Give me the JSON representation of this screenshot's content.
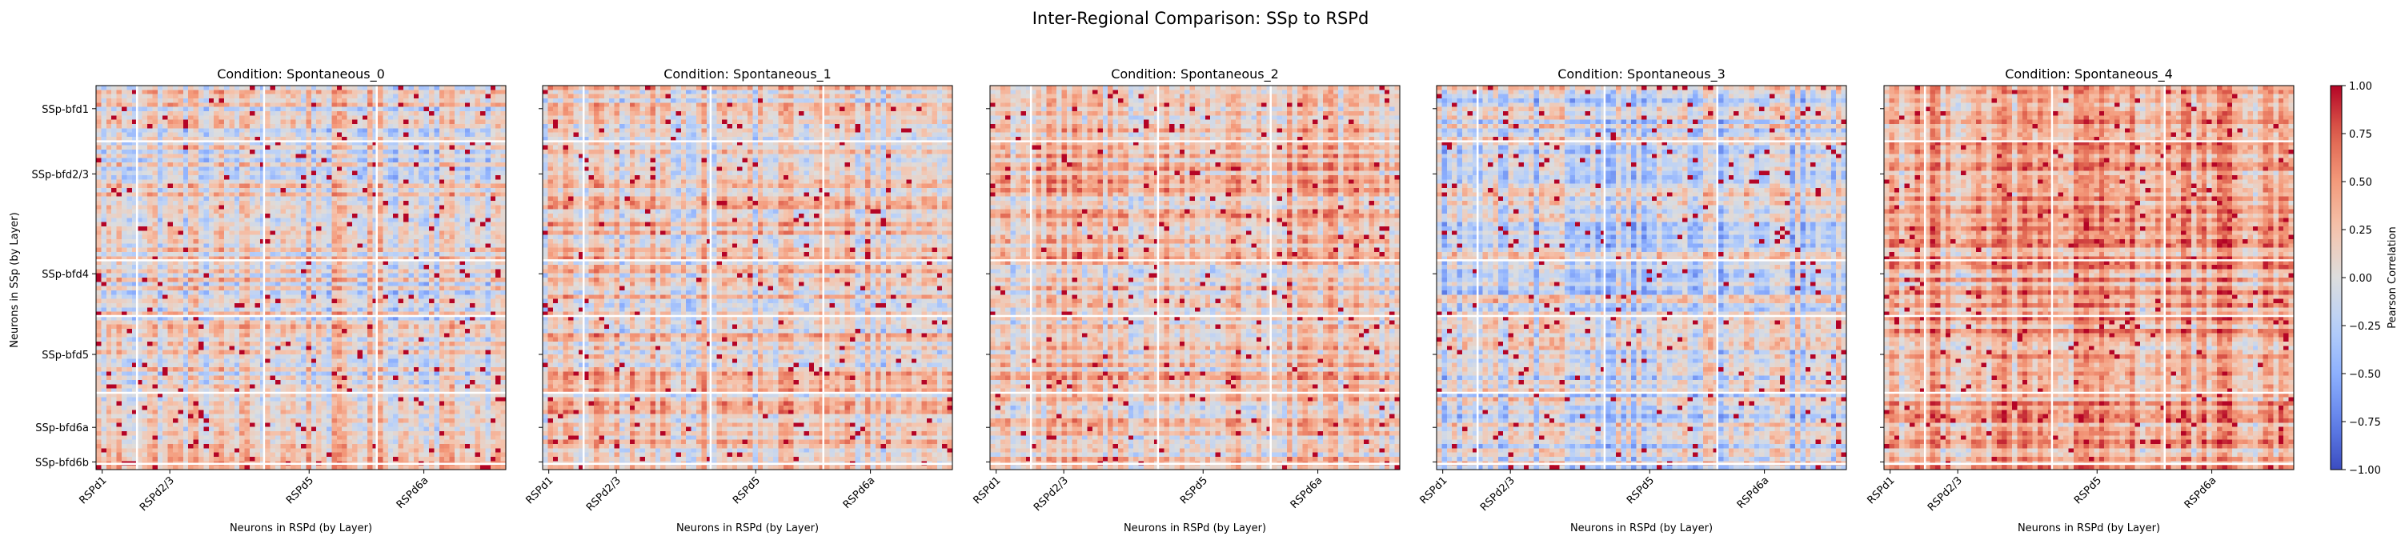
{
  "figure": {
    "title": "Inter-Regional Comparison: SSp to RSPd",
    "shared_ylabel": "Neurons in SSp (by Layer)"
  },
  "chart_data": [
    {
      "type": "heatmap",
      "title": "Condition: Spontaneous_0",
      "xlabel": "Neurons in RSPd (by Layer)",
      "ylabel": "Neurons in SSp (by Layer)",
      "x_tick_labels": [
        "RSPd1",
        "RSPd2/3",
        "RSPd5",
        "RSPd6a"
      ],
      "y_tick_labels": [
        "SSp-bfd1",
        "SSp-bfd2/3",
        "SSp-bfd4",
        "SSp-bfd5",
        "SSp-bfd6a",
        "SSp-bfd6b"
      ],
      "value_range": [
        -1.0,
        1.0
      ],
      "summary": {
        "mean_correlation": 0.05
      }
    },
    {
      "type": "heatmap",
      "title": "Condition: Spontaneous_1",
      "xlabel": "Neurons in RSPd (by Layer)",
      "x_tick_labels": [
        "RSPd1",
        "RSPd2/3",
        "RSPd5",
        "RSPd6a"
      ],
      "value_range": [
        -1.0,
        1.0
      ],
      "summary": {
        "mean_correlation": 0.15
      }
    },
    {
      "type": "heatmap",
      "title": "Condition: Spontaneous_2",
      "xlabel": "Neurons in RSPd (by Layer)",
      "x_tick_labels": [
        "RSPd1",
        "RSPd2/3",
        "RSPd5",
        "RSPd6a"
      ],
      "value_range": [
        -1.0,
        1.0
      ],
      "summary": {
        "mean_correlation": 0.2
      }
    },
    {
      "type": "heatmap",
      "title": "Condition: Spontaneous_3",
      "xlabel": "Neurons in RSPd (by Layer)",
      "x_tick_labels": [
        "RSPd1",
        "RSPd2/3",
        "RSPd5",
        "RSPd6a"
      ],
      "value_range": [
        -1.0,
        1.0
      ],
      "summary": {
        "mean_correlation": -0.1
      }
    },
    {
      "type": "heatmap",
      "title": "Condition: Spontaneous_4",
      "xlabel": "Neurons in RSPd (by Layer)",
      "x_tick_labels": [
        "RSPd1",
        "RSPd2/3",
        "RSPd5",
        "RSPd6a"
      ],
      "value_range": [
        -1.0,
        1.0
      ],
      "summary": {
        "mean_correlation": 0.35
      }
    }
  ],
  "colorbar": {
    "label": "Pearson Correlation",
    "colormap": "coolwarm",
    "ticks": [
      -1.0,
      -0.75,
      -0.5,
      -0.25,
      0.0,
      0.25,
      0.5,
      0.75,
      1.0
    ],
    "tick_labels": [
      "−1.00",
      "−0.75",
      "−0.50",
      "−0.25",
      "0.00",
      "0.25",
      "0.50",
      "0.75",
      "1.00"
    ],
    "colors": {
      "low": "#3b4cc0",
      "mid": "#dddddd",
      "high": "#b40426"
    }
  }
}
